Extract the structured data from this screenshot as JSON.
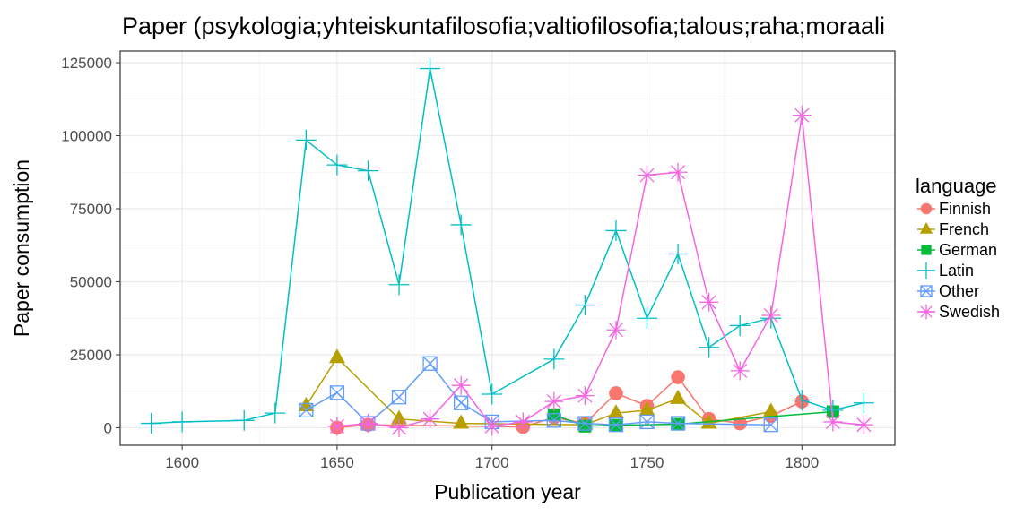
{
  "chart_data": {
    "type": "line",
    "title": "Paper (psykologia;yhteiskuntafilosofia;valtiofilosofia;talous;raha;moraali",
    "xlabel": "Publication year",
    "ylabel": "Paper consumption",
    "xlim": [
      1580,
      1830
    ],
    "ylim": [
      -6000,
      129000
    ],
    "x_ticks": [
      1600,
      1650,
      1700,
      1750,
      1800
    ],
    "x_tick_labels": [
      "1600",
      "1650",
      "1700",
      "1750",
      "1800"
    ],
    "y_ticks": [
      0,
      25000,
      50000,
      75000,
      100000,
      125000
    ],
    "y_tick_labels": [
      "0",
      "25000",
      "50000",
      "75000",
      "100000",
      "125000"
    ],
    "grid": true,
    "legend_title": "language",
    "legend_position": "right",
    "series": [
      {
        "name": "Finnish",
        "color": "#F8766D",
        "marker": "circle",
        "x": [
          1650,
          1660,
          1710,
          1720,
          1730,
          1740,
          1750,
          1760,
          1770,
          1780,
          1790,
          1800
        ],
        "y": [
          0,
          1000,
          300,
          3500,
          1500,
          11800,
          7500,
          17300,
          3000,
          1500,
          4000,
          9000
        ]
      },
      {
        "name": "French",
        "color": "#B79F00",
        "marker": "triangle",
        "x": [
          1640,
          1650,
          1670,
          1690,
          1730,
          1740,
          1750,
          1760,
          1770,
          1790
        ],
        "y": [
          7500,
          24000,
          3000,
          1500,
          1000,
          5000,
          6000,
          10000,
          1500,
          5500
        ]
      },
      {
        "name": "German",
        "color": "#00BA38",
        "marker": "square",
        "x": [
          1720,
          1730,
          1740,
          1760,
          1810
        ],
        "y": [
          4500,
          500,
          800,
          1200,
          5500
        ]
      },
      {
        "name": "Latin",
        "color": "#00BFC4",
        "marker": "plus",
        "x": [
          1590,
          1600,
          1620,
          1630,
          1640,
          1650,
          1660,
          1670,
          1680,
          1690,
          1700,
          1720,
          1730,
          1740,
          1750,
          1760,
          1770,
          1780,
          1790,
          1800,
          1810,
          1820
        ],
        "y": [
          1500,
          2000,
          2500,
          5000,
          98500,
          90000,
          88000,
          49000,
          123000,
          69500,
          11500,
          23500,
          42000,
          67500,
          37500,
          59500,
          27500,
          35000,
          37500,
          9500,
          6000,
          8500
        ]
      },
      {
        "name": "Other",
        "color": "#619CFF",
        "marker": "square-x",
        "x": [
          1640,
          1650,
          1660,
          1670,
          1680,
          1690,
          1700,
          1720,
          1730,
          1740,
          1750,
          1760,
          1790
        ],
        "y": [
          6000,
          12000,
          1500,
          10500,
          22000,
          8500,
          2000,
          2500,
          1500,
          1000,
          2000,
          1500,
          1000
        ]
      },
      {
        "name": "Swedish",
        "color": "#F564E3",
        "marker": "asterisk",
        "x": [
          1650,
          1660,
          1670,
          1680,
          1690,
          1700,
          1710,
          1720,
          1730,
          1740,
          1750,
          1760,
          1770,
          1780,
          1790,
          1800,
          1810,
          1820
        ],
        "y": [
          500,
          1500,
          0,
          3000,
          14500,
          500,
          2000,
          9000,
          11000,
          33500,
          86500,
          87500,
          43000,
          19500,
          38500,
          107000,
          2000,
          1000
        ]
      }
    ]
  }
}
